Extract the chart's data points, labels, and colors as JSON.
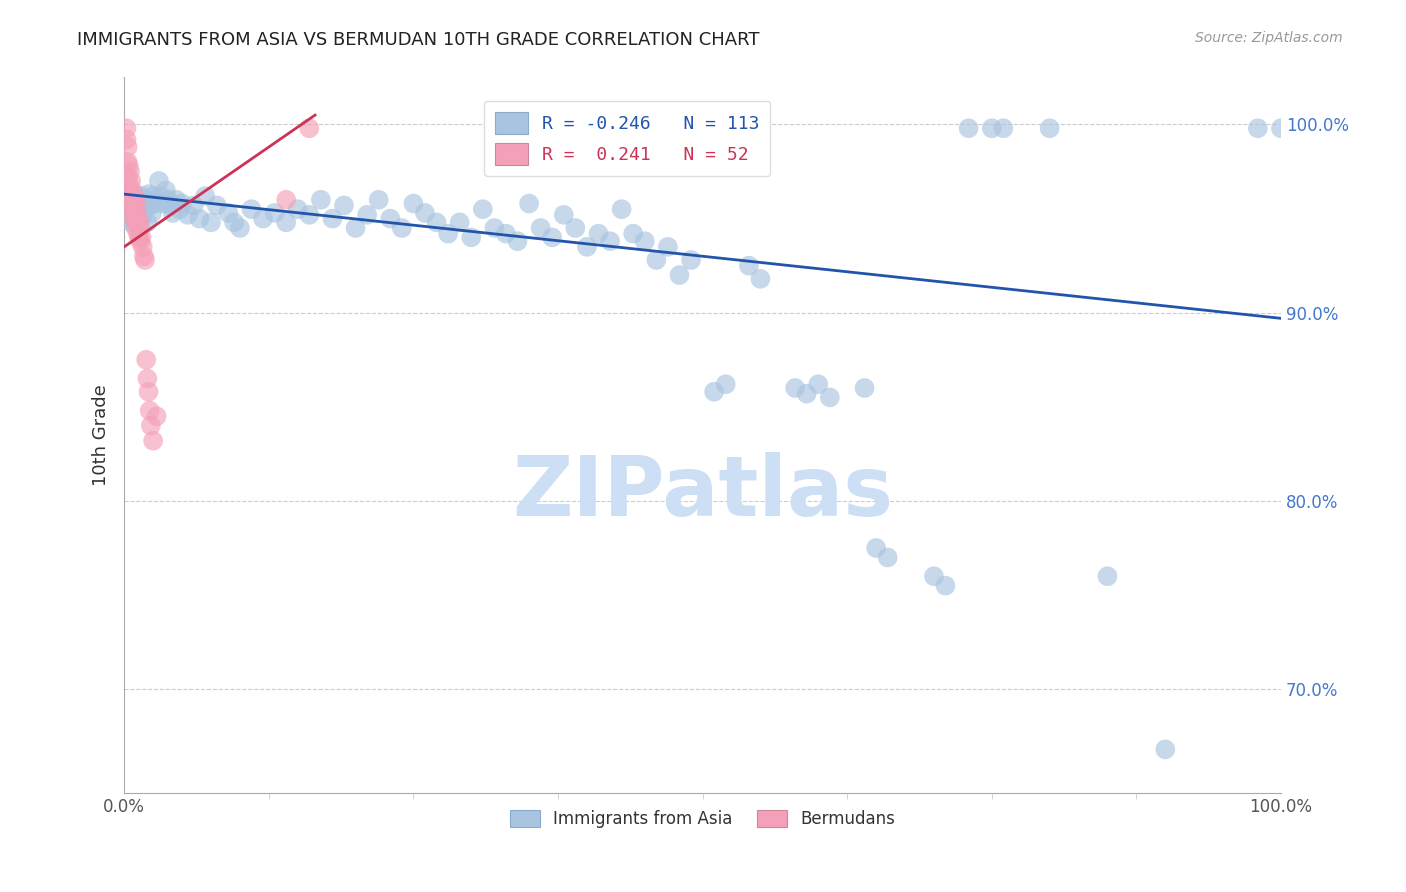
{
  "title": "IMMIGRANTS FROM ASIA VS BERMUDAN 10TH GRADE CORRELATION CHART",
  "source": "Source: ZipAtlas.com",
  "ylabel": "10th Grade",
  "y_tick_labels": [
    "100.0%",
    "90.0%",
    "80.0%",
    "70.0%"
  ],
  "y_tick_positions": [
    1.0,
    0.9,
    0.8,
    0.7
  ],
  "xlim": [
    0.0,
    1.0
  ],
  "ylim": [
    0.645,
    1.025
  ],
  "legend_blue_r": "R = -0.246",
  "legend_blue_n": "N = 113",
  "legend_pink_r": "R =  0.241",
  "legend_pink_n": "N = 52",
  "blue_color": "#a8c4e0",
  "pink_color": "#f4a0b8",
  "blue_line_color": "#2255aa",
  "pink_line_color": "#cc3355",
  "watermark": "ZIPatlas",
  "watermark_color": "#ccdff5",
  "blue_scatter": [
    [
      0.001,
      0.958
    ],
    [
      0.002,
      0.962
    ],
    [
      0.002,
      0.955
    ],
    [
      0.003,
      0.96
    ],
    [
      0.003,
      0.952
    ],
    [
      0.004,
      0.958
    ],
    [
      0.004,
      0.95
    ],
    [
      0.005,
      0.963
    ],
    [
      0.005,
      0.957
    ],
    [
      0.006,
      0.955
    ],
    [
      0.006,
      0.948
    ],
    [
      0.007,
      0.96
    ],
    [
      0.007,
      0.953
    ],
    [
      0.008,
      0.957
    ],
    [
      0.008,
      0.95
    ],
    [
      0.009,
      0.962
    ],
    [
      0.009,
      0.955
    ],
    [
      0.01,
      0.958
    ],
    [
      0.01,
      0.948
    ],
    [
      0.011,
      0.955
    ],
    [
      0.011,
      0.952
    ],
    [
      0.012,
      0.96
    ],
    [
      0.012,
      0.957
    ],
    [
      0.013,
      0.953
    ],
    [
      0.013,
      0.948
    ],
    [
      0.014,
      0.962
    ],
    [
      0.015,
      0.958
    ],
    [
      0.015,
      0.95
    ],
    [
      0.016,
      0.957
    ],
    [
      0.016,
      0.952
    ],
    [
      0.018,
      0.955
    ],
    [
      0.019,
      0.96
    ],
    [
      0.02,
      0.948
    ],
    [
      0.021,
      0.963
    ],
    [
      0.022,
      0.957
    ],
    [
      0.024,
      0.953
    ],
    [
      0.025,
      0.962
    ],
    [
      0.027,
      0.958
    ],
    [
      0.028,
      0.96
    ],
    [
      0.03,
      0.97
    ],
    [
      0.032,
      0.962
    ],
    [
      0.034,
      0.958
    ],
    [
      0.036,
      0.965
    ],
    [
      0.038,
      0.96
    ],
    [
      0.04,
      0.957
    ],
    [
      0.042,
      0.953
    ],
    [
      0.045,
      0.96
    ],
    [
      0.048,
      0.955
    ],
    [
      0.05,
      0.958
    ],
    [
      0.055,
      0.952
    ],
    [
      0.06,
      0.957
    ],
    [
      0.065,
      0.95
    ],
    [
      0.07,
      0.962
    ],
    [
      0.075,
      0.948
    ],
    [
      0.08,
      0.957
    ],
    [
      0.09,
      0.953
    ],
    [
      0.095,
      0.948
    ],
    [
      0.1,
      0.945
    ],
    [
      0.11,
      0.955
    ],
    [
      0.12,
      0.95
    ],
    [
      0.13,
      0.953
    ],
    [
      0.14,
      0.948
    ],
    [
      0.15,
      0.955
    ],
    [
      0.16,
      0.952
    ],
    [
      0.17,
      0.96
    ],
    [
      0.18,
      0.95
    ],
    [
      0.19,
      0.957
    ],
    [
      0.2,
      0.945
    ],
    [
      0.21,
      0.952
    ],
    [
      0.22,
      0.96
    ],
    [
      0.23,
      0.95
    ],
    [
      0.24,
      0.945
    ],
    [
      0.25,
      0.958
    ],
    [
      0.26,
      0.953
    ],
    [
      0.27,
      0.948
    ],
    [
      0.28,
      0.942
    ],
    [
      0.29,
      0.948
    ],
    [
      0.3,
      0.94
    ],
    [
      0.31,
      0.955
    ],
    [
      0.32,
      0.945
    ],
    [
      0.33,
      0.942
    ],
    [
      0.34,
      0.938
    ],
    [
      0.35,
      0.958
    ],
    [
      0.36,
      0.945
    ],
    [
      0.37,
      0.94
    ],
    [
      0.38,
      0.952
    ],
    [
      0.39,
      0.945
    ],
    [
      0.4,
      0.935
    ],
    [
      0.41,
      0.942
    ],
    [
      0.42,
      0.938
    ],
    [
      0.43,
      0.955
    ],
    [
      0.44,
      0.942
    ],
    [
      0.45,
      0.938
    ],
    [
      0.46,
      0.928
    ],
    [
      0.47,
      0.935
    ],
    [
      0.48,
      0.92
    ],
    [
      0.49,
      0.928
    ],
    [
      0.51,
      0.858
    ],
    [
      0.52,
      0.862
    ],
    [
      0.54,
      0.925
    ],
    [
      0.55,
      0.918
    ],
    [
      0.58,
      0.86
    ],
    [
      0.59,
      0.857
    ],
    [
      0.6,
      0.862
    ],
    [
      0.61,
      0.855
    ],
    [
      0.64,
      0.86
    ],
    [
      0.65,
      0.775
    ],
    [
      0.66,
      0.77
    ],
    [
      0.7,
      0.76
    ],
    [
      0.71,
      0.755
    ],
    [
      0.73,
      0.998
    ],
    [
      0.75,
      0.998
    ],
    [
      0.76,
      0.998
    ],
    [
      0.8,
      0.998
    ],
    [
      0.85,
      0.76
    ],
    [
      0.9,
      0.668
    ],
    [
      0.98,
      0.998
    ],
    [
      1.0,
      0.998
    ]
  ],
  "pink_scatter": [
    [
      0.002,
      0.998
    ],
    [
      0.002,
      0.992
    ],
    [
      0.003,
      0.988
    ],
    [
      0.003,
      0.98
    ],
    [
      0.003,
      0.972
    ],
    [
      0.004,
      0.978
    ],
    [
      0.004,
      0.968
    ],
    [
      0.004,
      0.96
    ],
    [
      0.005,
      0.975
    ],
    [
      0.005,
      0.965
    ],
    [
      0.005,
      0.958
    ],
    [
      0.006,
      0.97
    ],
    [
      0.006,
      0.96
    ],
    [
      0.006,
      0.952
    ],
    [
      0.007,
      0.965
    ],
    [
      0.007,
      0.958
    ],
    [
      0.008,
      0.962
    ],
    [
      0.008,
      0.955
    ],
    [
      0.009,
      0.958
    ],
    [
      0.009,
      0.95
    ],
    [
      0.01,
      0.96
    ],
    [
      0.01,
      0.952
    ],
    [
      0.01,
      0.945
    ],
    [
      0.011,
      0.955
    ],
    [
      0.011,
      0.948
    ],
    [
      0.012,
      0.95
    ],
    [
      0.012,
      0.942
    ],
    [
      0.013,
      0.948
    ],
    [
      0.013,
      0.94
    ],
    [
      0.014,
      0.945
    ],
    [
      0.014,
      0.938
    ],
    [
      0.015,
      0.94
    ],
    [
      0.016,
      0.935
    ],
    [
      0.017,
      0.93
    ],
    [
      0.018,
      0.928
    ],
    [
      0.019,
      0.875
    ],
    [
      0.02,
      0.865
    ],
    [
      0.021,
      0.858
    ],
    [
      0.022,
      0.848
    ],
    [
      0.023,
      0.84
    ],
    [
      0.025,
      0.832
    ],
    [
      0.028,
      0.845
    ],
    [
      0.14,
      0.96
    ],
    [
      0.16,
      0.998
    ]
  ],
  "blue_trendline": [
    [
      0.0,
      0.963
    ],
    [
      1.0,
      0.897
    ]
  ],
  "pink_trendline": [
    [
      0.0,
      0.935
    ],
    [
      0.165,
      1.005
    ]
  ]
}
